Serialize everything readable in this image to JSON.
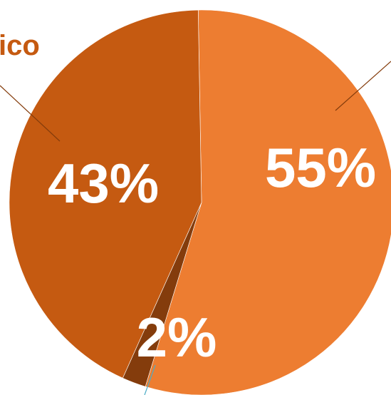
{
  "chart_data": {
    "type": "pie",
    "slices": [
      {
        "label": "",
        "value": 55,
        "display": "55%",
        "color": "#ed7d31"
      },
      {
        "label": "",
        "value": 2,
        "display": "2%",
        "color": "#843c0c"
      },
      {
        "label": "ico",
        "value": 43,
        "display": "43%",
        "color": "#c55a11"
      }
    ],
    "legend": "none",
    "leader_line_colors": [
      "#843c0c",
      "#4bacc6",
      "#843c0c"
    ]
  }
}
